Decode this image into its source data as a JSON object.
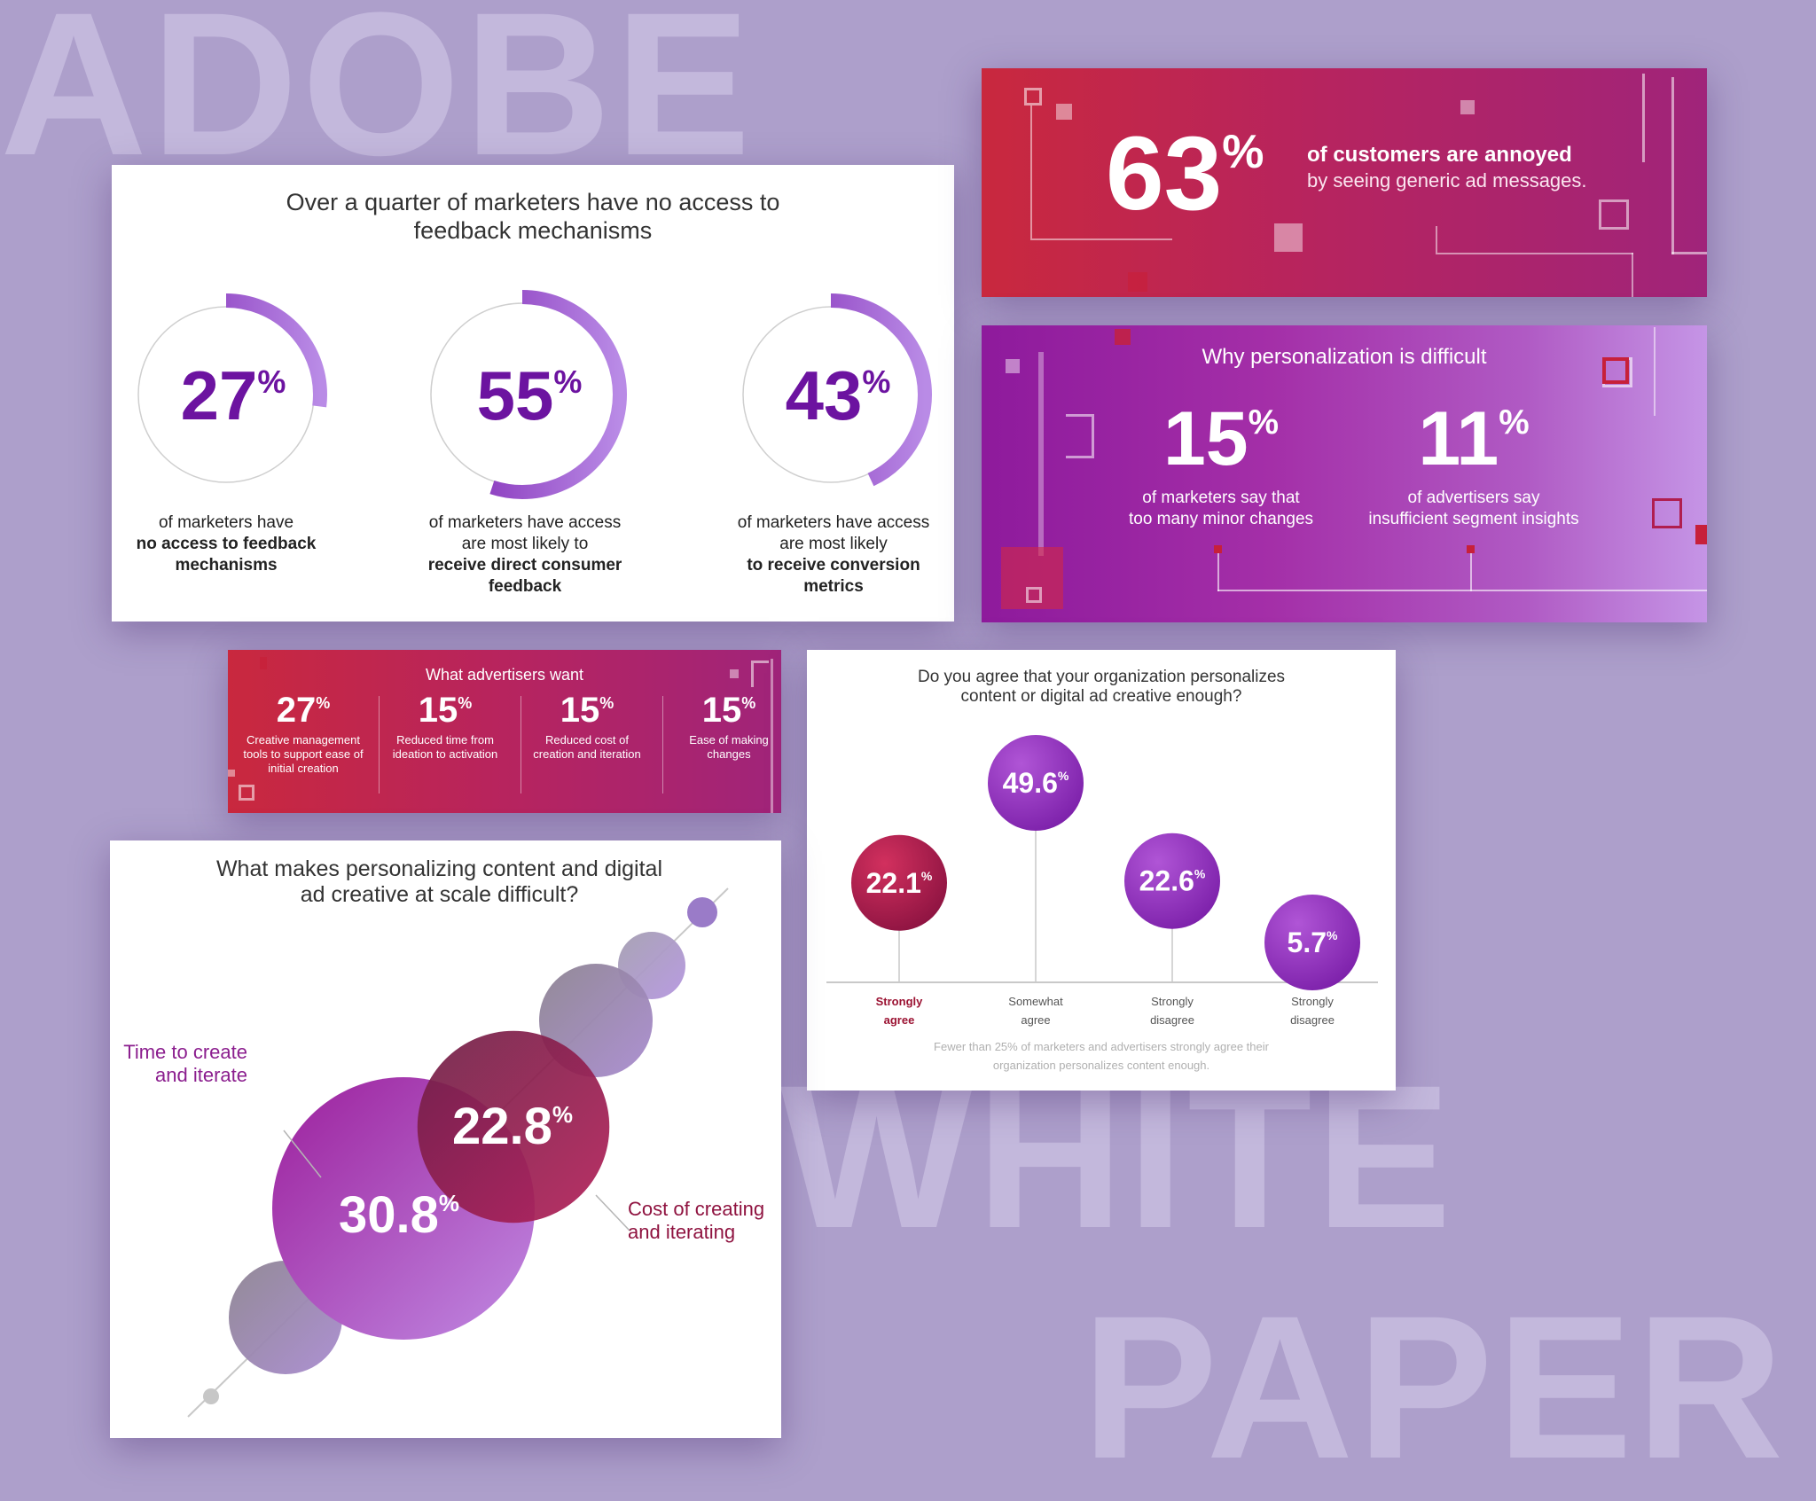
{
  "background": {
    "title_word": "ADOBE",
    "word_white": "WHITE",
    "word_paper": "PAPER",
    "color": "#ad9fcb"
  },
  "feedback_card": {
    "title_line1": "Over a quarter of marketers have no access to",
    "title_line2": "feedback mechanisms",
    "rings": [
      {
        "value": 27,
        "label": "27",
        "pct": "%",
        "cap_plain": "of marketers have",
        "cap_bold": "no access to feedback mechanisms"
      },
      {
        "value": 55,
        "label": "55",
        "pct": "%",
        "cap_plain": "of marketers have access are most likely to",
        "cap_bold": "receive direct consumer feedback"
      },
      {
        "value": 43,
        "label": "43",
        "pct": "%",
        "cap_plain": "of marketers have access are most likely",
        "cap_bold": "to receive conversion metrics"
      }
    ]
  },
  "annoyed_card": {
    "value": "63",
    "pct": "%",
    "line1": "of customers are annoyed",
    "line2": "by seeing generic ad messages."
  },
  "why_card": {
    "title": "Why personalization is difficult",
    "stats": [
      {
        "value": "15",
        "pct": "%",
        "line1": "of marketers say that",
        "line2": "too many minor changes"
      },
      {
        "value": "11",
        "pct": "%",
        "line1": "of advertisers say",
        "line2": "insufficient segment insights"
      }
    ]
  },
  "want_card": {
    "title": "What advertisers want",
    "items": [
      {
        "value": "27",
        "pct": "%",
        "line1": "Creative management",
        "line2": "tools to support ease of",
        "line3": "initial creation"
      },
      {
        "value": "15",
        "pct": "%",
        "line1": "Reduced time from",
        "line2": "ideation to activation",
        "line3": ""
      },
      {
        "value": "15",
        "pct": "%",
        "line1": "Reduced cost of",
        "line2": "creation and iteration",
        "line3": ""
      },
      {
        "value": "15",
        "pct": "%",
        "line1": "Ease of making",
        "line2": "changes",
        "line3": ""
      }
    ]
  },
  "agree_card": {
    "title_line1": "Do you agree that your organization personalizes",
    "title_line2": "content or digital ad creative enough?",
    "footnote_line1": "Fewer than 25% of marketers and advertisers strongly agree their",
    "footnote_line2": "organization personalizes content enough."
  },
  "bubble_card": {
    "title_line1": "What makes personalizing content and digital",
    "title_line2": "ad creative at scale difficult?",
    "label_time_1": "Time to create",
    "label_time_2": "and iterate",
    "label_cost_1": "Cost of creating",
    "label_cost_2": "and iterating"
  },
  "chart_data": [
    {
      "type": "pie",
      "title": "Over a quarter of marketers have no access to feedback mechanisms",
      "categories": [
        "no access to feedback mechanisms",
        "receive direct consumer feedback",
        "receive conversion metrics"
      ],
      "values": [
        27,
        55,
        43
      ],
      "unit": "%"
    },
    {
      "type": "bar",
      "title": "Do you agree that your organization personalizes content or digital ad creative enough?",
      "categories": [
        "Strongly agree",
        "Somewhat agree",
        "Strongly disagree",
        "Strongly disagree"
      ],
      "categories_split": [
        [
          "Strongly",
          "agree"
        ],
        [
          "Somewhat",
          "agree"
        ],
        [
          "Strongly",
          "disagree"
        ],
        [
          "Strongly",
          "disagree"
        ]
      ],
      "values": [
        22.1,
        49.6,
        22.6,
        5.7
      ],
      "labels": [
        "22.1",
        "49.6",
        "22.6",
        "5.7"
      ],
      "unit": "%",
      "colors": [
        "#b01e4f",
        "#8c2fb5",
        "#9a3fc4",
        "#a24ad0"
      ],
      "highlight_label_color": "#9b1232"
    },
    {
      "type": "scatter",
      "title": "What makes personalizing content and digital ad creative at scale difficult?",
      "categories": [
        "Time to create and iterate",
        "Cost of creating and iterating"
      ],
      "values": [
        30.8,
        22.8
      ],
      "labels": [
        "30.8",
        "22.8"
      ],
      "unit": "%"
    }
  ]
}
